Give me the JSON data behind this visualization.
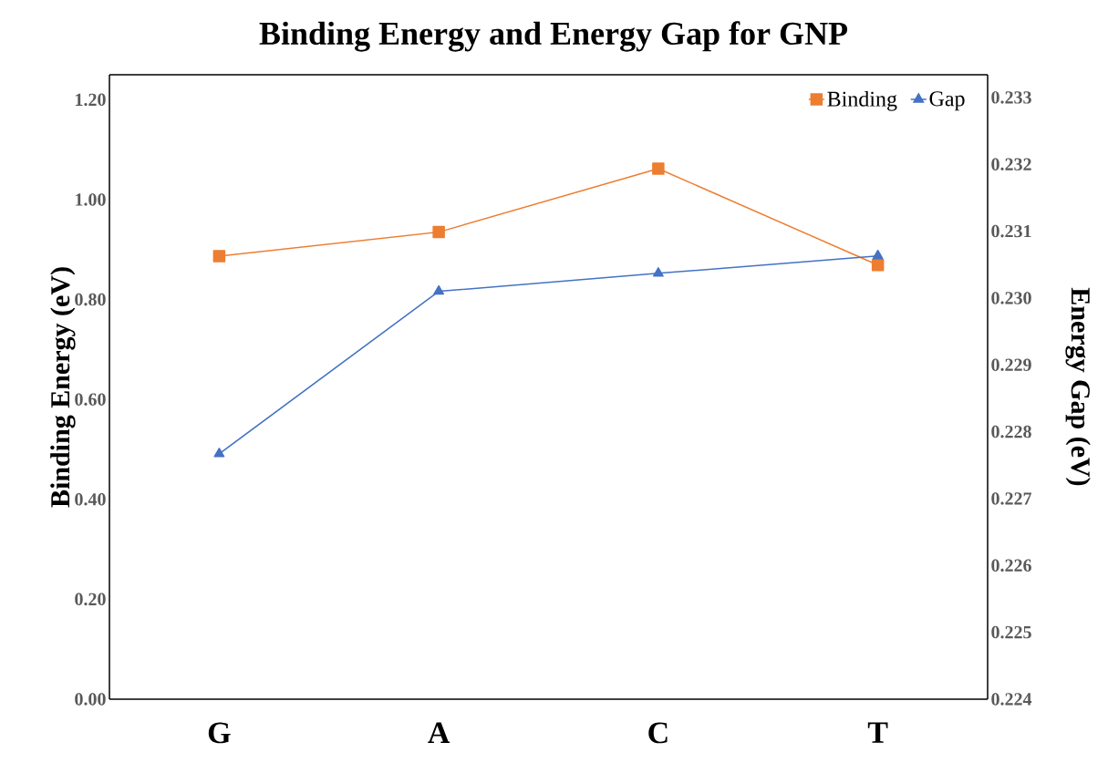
{
  "chart_data": {
    "type": "line",
    "title": "Binding Energy and Energy Gap for GNP",
    "ylabel": "Binding Energy (eV)",
    "y2label": "Energy Gap (eV)",
    "categories": [
      "G",
      "A",
      "C",
      "T"
    ],
    "series": [
      {
        "name": "Binding",
        "color": "#ed7d31",
        "marker": "square",
        "values": [
          0.887,
          0.935,
          1.062,
          0.869
        ]
      },
      {
        "name": "Gap",
        "color": "#4472c4",
        "marker": "triangle",
        "axis": "y2",
        "values": [
          0.22767,
          0.2301,
          0.23037,
          0.23063
        ]
      }
    ],
    "ylim": [
      0,
      1.25
    ],
    "yticks": [
      {
        "value": 0,
        "label": "0.00"
      },
      {
        "value": 0.2,
        "label": "0.20"
      },
      {
        "value": 0.4,
        "label": "0.40"
      },
      {
        "value": 0.6,
        "label": "0.60"
      },
      {
        "value": 0.8,
        "label": "0.80"
      },
      {
        "value": 1.0,
        "label": "1.00"
      },
      {
        "value": 1.2,
        "label": "1.20"
      }
    ],
    "y2lim": [
      0.224,
      0.23334
    ],
    "y2ticks": [
      0.224,
      0.225,
      0.226,
      0.227,
      0.228,
      0.229,
      {
        "value": 0.23,
        "label": "0.230"
      },
      0.231,
      0.232,
      0.233
    ],
    "legend": "top right"
  }
}
